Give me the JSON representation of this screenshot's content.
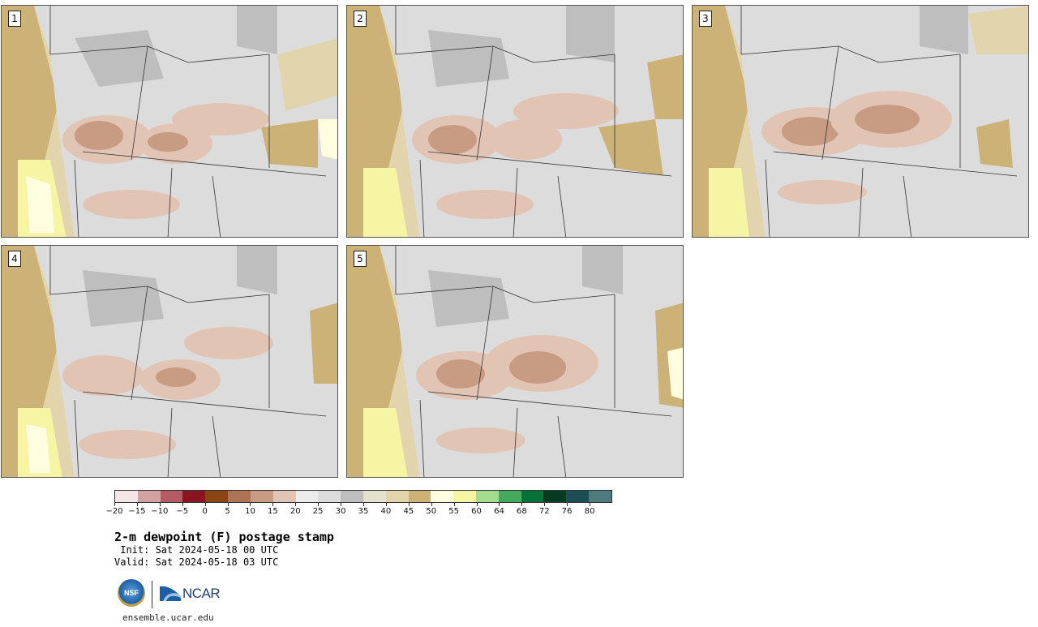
{
  "panels": [
    {
      "label": "1"
    },
    {
      "label": "2"
    },
    {
      "label": "3"
    },
    {
      "label": "4"
    },
    {
      "label": "5"
    }
  ],
  "colorbar": {
    "colors": [
      "#f4e6e6",
      "#d4a1a3",
      "#b45c63",
      "#8a1520",
      "#8b4515",
      "#ac7455",
      "#c89c83",
      "#e2c4b4",
      "#ececec",
      "#dcdcdc",
      "#bebebe",
      "#e5e1cf",
      "#e2d5ad",
      "#ccb277",
      "#fffde0",
      "#f6f5a4",
      "#a3dc8e",
      "#44ab5e",
      "#047238",
      "#053a22",
      "#1b4f55",
      "#4f7a7c"
    ],
    "tick_labels": [
      "−20",
      "−15",
      "−10",
      "−5",
      "0",
      "5",
      "10",
      "15",
      "20",
      "25",
      "30",
      "35",
      "40",
      "45",
      "50",
      "55",
      "60",
      "64",
      "68",
      "72",
      "76",
      "80"
    ]
  },
  "title": "2-m dewpoint (F) postage stamp",
  "init_line": " Init: Sat 2024-05-18 00 UTC",
  "valid_line": "Valid: Sat 2024-05-18 03 UTC",
  "logos": {
    "nsf": "NSF",
    "ncar": "NCAR"
  },
  "site": "ensemble.ucar.edu"
}
